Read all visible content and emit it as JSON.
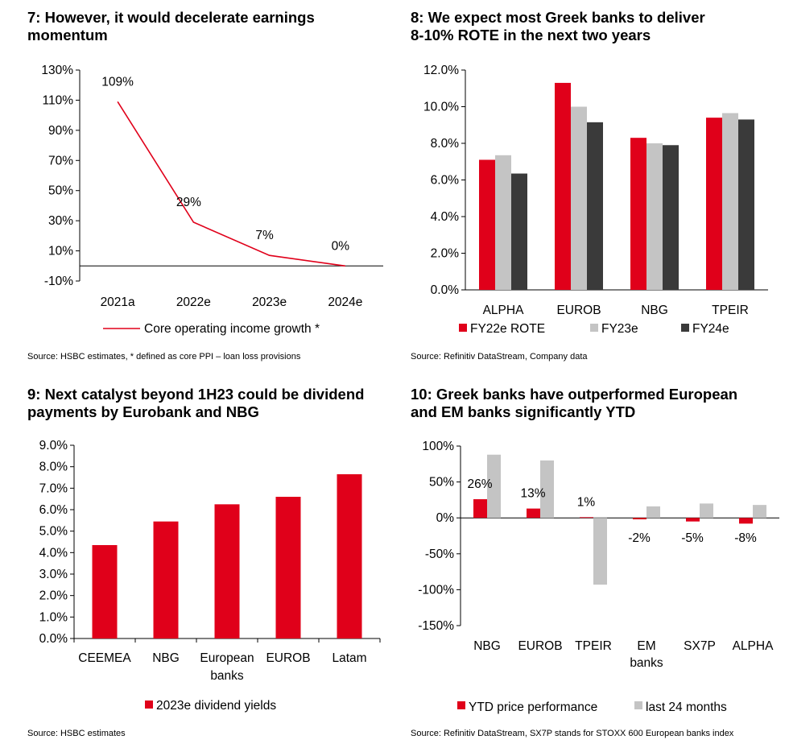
{
  "colors": {
    "red": "#e0001a",
    "light_gray": "#c4c4c4",
    "dark_gray": "#3a3a3a"
  },
  "chart_data": [
    {
      "type": "line",
      "title": "7: However, it would decelerate earnings momentum",
      "title_lines": [
        "7: However, it would decelerate earnings",
        "momentum"
      ],
      "categories": [
        "2021a",
        "2022e",
        "2023e",
        "2024e"
      ],
      "series": [
        {
          "name": "Core operating income growth *",
          "values": [
            109,
            29,
            7,
            0
          ]
        }
      ],
      "data_labels": [
        "109%",
        "29%",
        "7%",
        "0%"
      ],
      "yticks": [
        "-10%",
        "10%",
        "30%",
        "50%",
        "70%",
        "90%",
        "110%",
        "130%"
      ],
      "ylim": [
        -10,
        130
      ],
      "source": "Source: HSBC estimates, * defined as core PPI – loan loss provisions"
    },
    {
      "type": "bar",
      "title": "8: We expect most Greek banks to deliver 8-10% ROTE in the next two years",
      "title_lines": [
        "8: We expect most Greek banks to deliver",
        "8-10% ROTE in the next two years"
      ],
      "categories": [
        "ALPHA",
        "EUROB",
        "NBG",
        "TPEIR"
      ],
      "series": [
        {
          "name": "FY22e  ROTE",
          "values": [
            7.1,
            11.3,
            8.3,
            9.4
          ]
        },
        {
          "name": "FY23e",
          "values": [
            7.35,
            10.0,
            8.0,
            9.65
          ]
        },
        {
          "name": "FY24e",
          "values": [
            6.35,
            9.15,
            7.9,
            9.3
          ]
        }
      ],
      "yticks": [
        "0.0%",
        "2.0%",
        "4.0%",
        "6.0%",
        "8.0%",
        "10.0%",
        "12.0%"
      ],
      "ylim": [
        0,
        12
      ],
      "source": "Source: Refinitiv DataStream, Company data"
    },
    {
      "type": "bar",
      "title": "9: Next catalyst beyond 1H23 could be dividend payments by Eurobank and NBG",
      "title_lines": [
        "9: Next catalyst beyond 1H23 could be dividend",
        "payments by Eurobank and NBG"
      ],
      "categories": [
        "CEEMEA",
        "NBG",
        "European banks",
        "EUROB",
        "Latam"
      ],
      "category_lines": [
        [
          "CEEMEA"
        ],
        [
          "NBG"
        ],
        [
          "European",
          "banks"
        ],
        [
          "EUROB"
        ],
        [
          "Latam"
        ]
      ],
      "series": [
        {
          "name": "2023e dividend yields",
          "values": [
            4.35,
            5.45,
            6.25,
            6.6,
            7.65
          ]
        }
      ],
      "yticks": [
        "0.0%",
        "1.0%",
        "2.0%",
        "3.0%",
        "4.0%",
        "5.0%",
        "6.0%",
        "7.0%",
        "8.0%",
        "9.0%"
      ],
      "ylim": [
        0,
        9
      ],
      "source": "Source: HSBC estimates"
    },
    {
      "type": "bar",
      "title": "10: Greek banks have outperformed European and EM banks significantly YTD",
      "title_lines": [
        "10: Greek banks have outperformed European",
        "and EM banks significantly YTD"
      ],
      "categories": [
        "NBG",
        "EUROB",
        "TPEIR",
        "EM banks",
        "SX7P",
        "ALPHA"
      ],
      "category_lines": [
        [
          "NBG"
        ],
        [
          "EUROB"
        ],
        [
          "TPEIR"
        ],
        [
          "EM",
          "banks"
        ],
        [
          "SX7P"
        ],
        [
          "ALPHA"
        ]
      ],
      "series": [
        {
          "name": "YTD price performance",
          "values": [
            26,
            13,
            1,
            -2,
            -5,
            -8
          ]
        },
        {
          "name": "last 24 months",
          "values": [
            88,
            80,
            -93,
            16,
            20,
            18
          ]
        }
      ],
      "data_labels": [
        "26%",
        "13%",
        "1%",
        "-2%",
        "-5%",
        "-8%"
      ],
      "yticks": [
        "-150%",
        "-100%",
        "-50%",
        "0%",
        "50%",
        "100%"
      ],
      "ylim": [
        -150,
        100
      ],
      "source": "Source: Refinitiv DataStream, SX7P stands for STOXX 600 European banks index"
    }
  ]
}
